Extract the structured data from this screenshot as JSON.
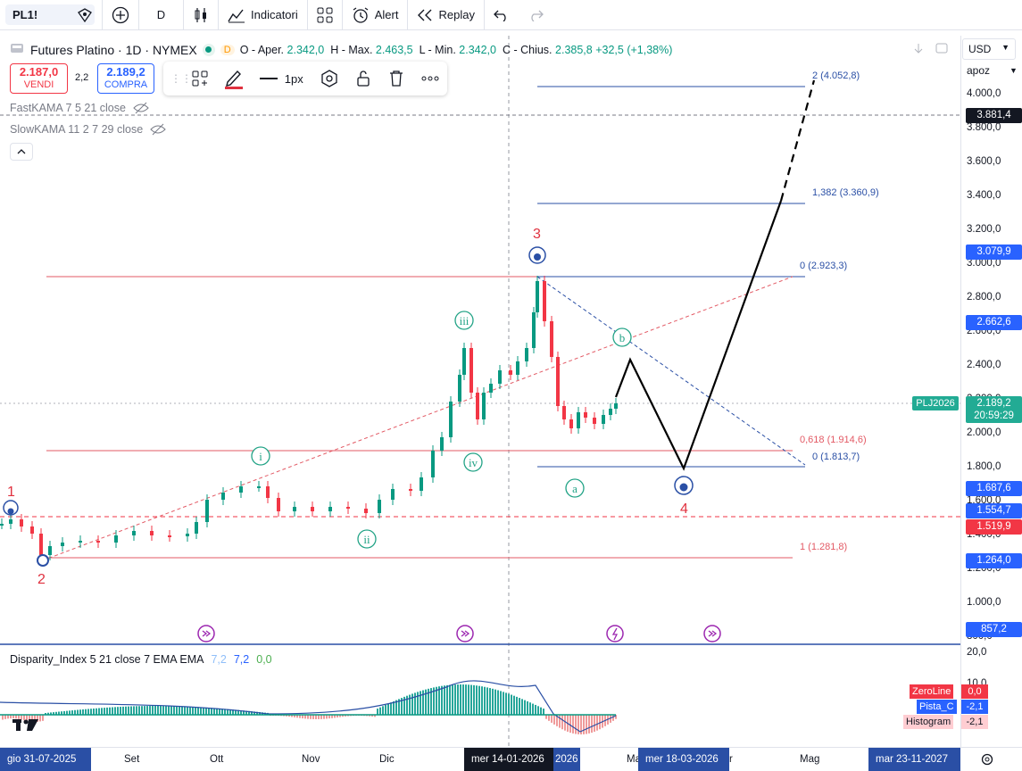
{
  "topbar": {
    "symbol": "PL1!",
    "interval": "D",
    "indicators_label": "Indicatori",
    "alert_label": "Alert",
    "replay_label": "Replay"
  },
  "legend": {
    "title": "Futures Platino · 1D · NYMEX",
    "d_badge": "D",
    "o_label": "O - Aper.",
    "o_val": "2.342,0",
    "h_label": "H - Max.",
    "h_val": "2.463,5",
    "l_label": "L - Min.",
    "l_val": "2.342,0",
    "c_label": "C - Chius.",
    "c_val": "2.385,8",
    "chg_val": "+32,5 (+1,38%)"
  },
  "trade": {
    "sell_price": "2.187,0",
    "sell_label": "VENDI",
    "spread": "2,2",
    "buy_price": "2.189,2",
    "buy_label": "COMPRA"
  },
  "drawing_toolbar": {
    "width_label": "1px"
  },
  "indicators": {
    "fastkama": "FastKAMA 7 5 21 close",
    "slowkama": "SlowKAMA 11 2 7 29 close",
    "disparity": "Disparity_Index 5 21 close 7 EMA EMA",
    "disp_v1": "7,2",
    "disp_v2": "7,2",
    "disp_v3": "0,0"
  },
  "price_axis": {
    "currency": "USD",
    "mode": "apoz",
    "ticks": [
      "4.000,0",
      "3.800,0",
      "3.600,0",
      "3.400,0",
      "3.200,0",
      "3.000,0",
      "2.800,0",
      "2.600,0",
      "2.400,0",
      "2.200,0",
      "2.000,0",
      "1.800,0",
      "1.600,0",
      "1.400,0",
      "1.200,0",
      "1.000,0",
      "800,0"
    ],
    "tags": {
      "t1": "3.881,4",
      "t2": "3.079,9",
      "t3": "2.662,6",
      "t4": "2.189,2",
      "t4_time": "20:59:29",
      "t5": "1.687,6",
      "t6": "1.554,7",
      "t7": "1.519,9",
      "t8": "1.264,0",
      "t9": "857,2"
    },
    "symbol_tag": "PLJ2026",
    "lower_ticks": [
      "20,0",
      "10,0"
    ],
    "zeroline_label": "ZeroLine",
    "zeroline_val": "0,0",
    "pista_label": "Pista_C",
    "pista_val": "-2,1",
    "hist_label": "Histogram",
    "hist_val": "-2,1"
  },
  "fib": {
    "f1": "2 (4.052,8)",
    "f2": "1,382 (3.360,9)",
    "f3": "0 (2.923,3)",
    "f4": "0,618 (1.914,6)",
    "f5": "0 (1.813,7)",
    "f6": "1 (1.281,8)"
  },
  "waves": {
    "w1": "1",
    "w2": "2",
    "w3": "3",
    "w4": "4",
    "wi": "i",
    "wii": "ii",
    "wiii": "iii",
    "wiv": "iv",
    "wa": "a",
    "wb": "b"
  },
  "time_axis": {
    "start": "gio 31-07-2025",
    "set": "Set",
    "ott": "Ott",
    "nov": "Nov",
    "dic": "Dic",
    "cursor": "mer 14-01-2026",
    "y2026": "2026",
    "mar": "Ma",
    "mid": "mer 18-03-2026",
    "apr": "r",
    "mag": "Mag",
    "end": "mar 23-11-2027"
  },
  "colors": {
    "up": "#089981",
    "down": "#f23645",
    "fib_red": "#e35a65",
    "fib_blue": "#2a4fa5",
    "wave_teal": "#22a386",
    "purple": "#9c27b0"
  },
  "chart_data": {
    "type": "candlestick",
    "note_levels": [
      2923.3,
      1914.6,
      1813.7,
      1281.8,
      3360.9,
      4052.8
    ]
  }
}
